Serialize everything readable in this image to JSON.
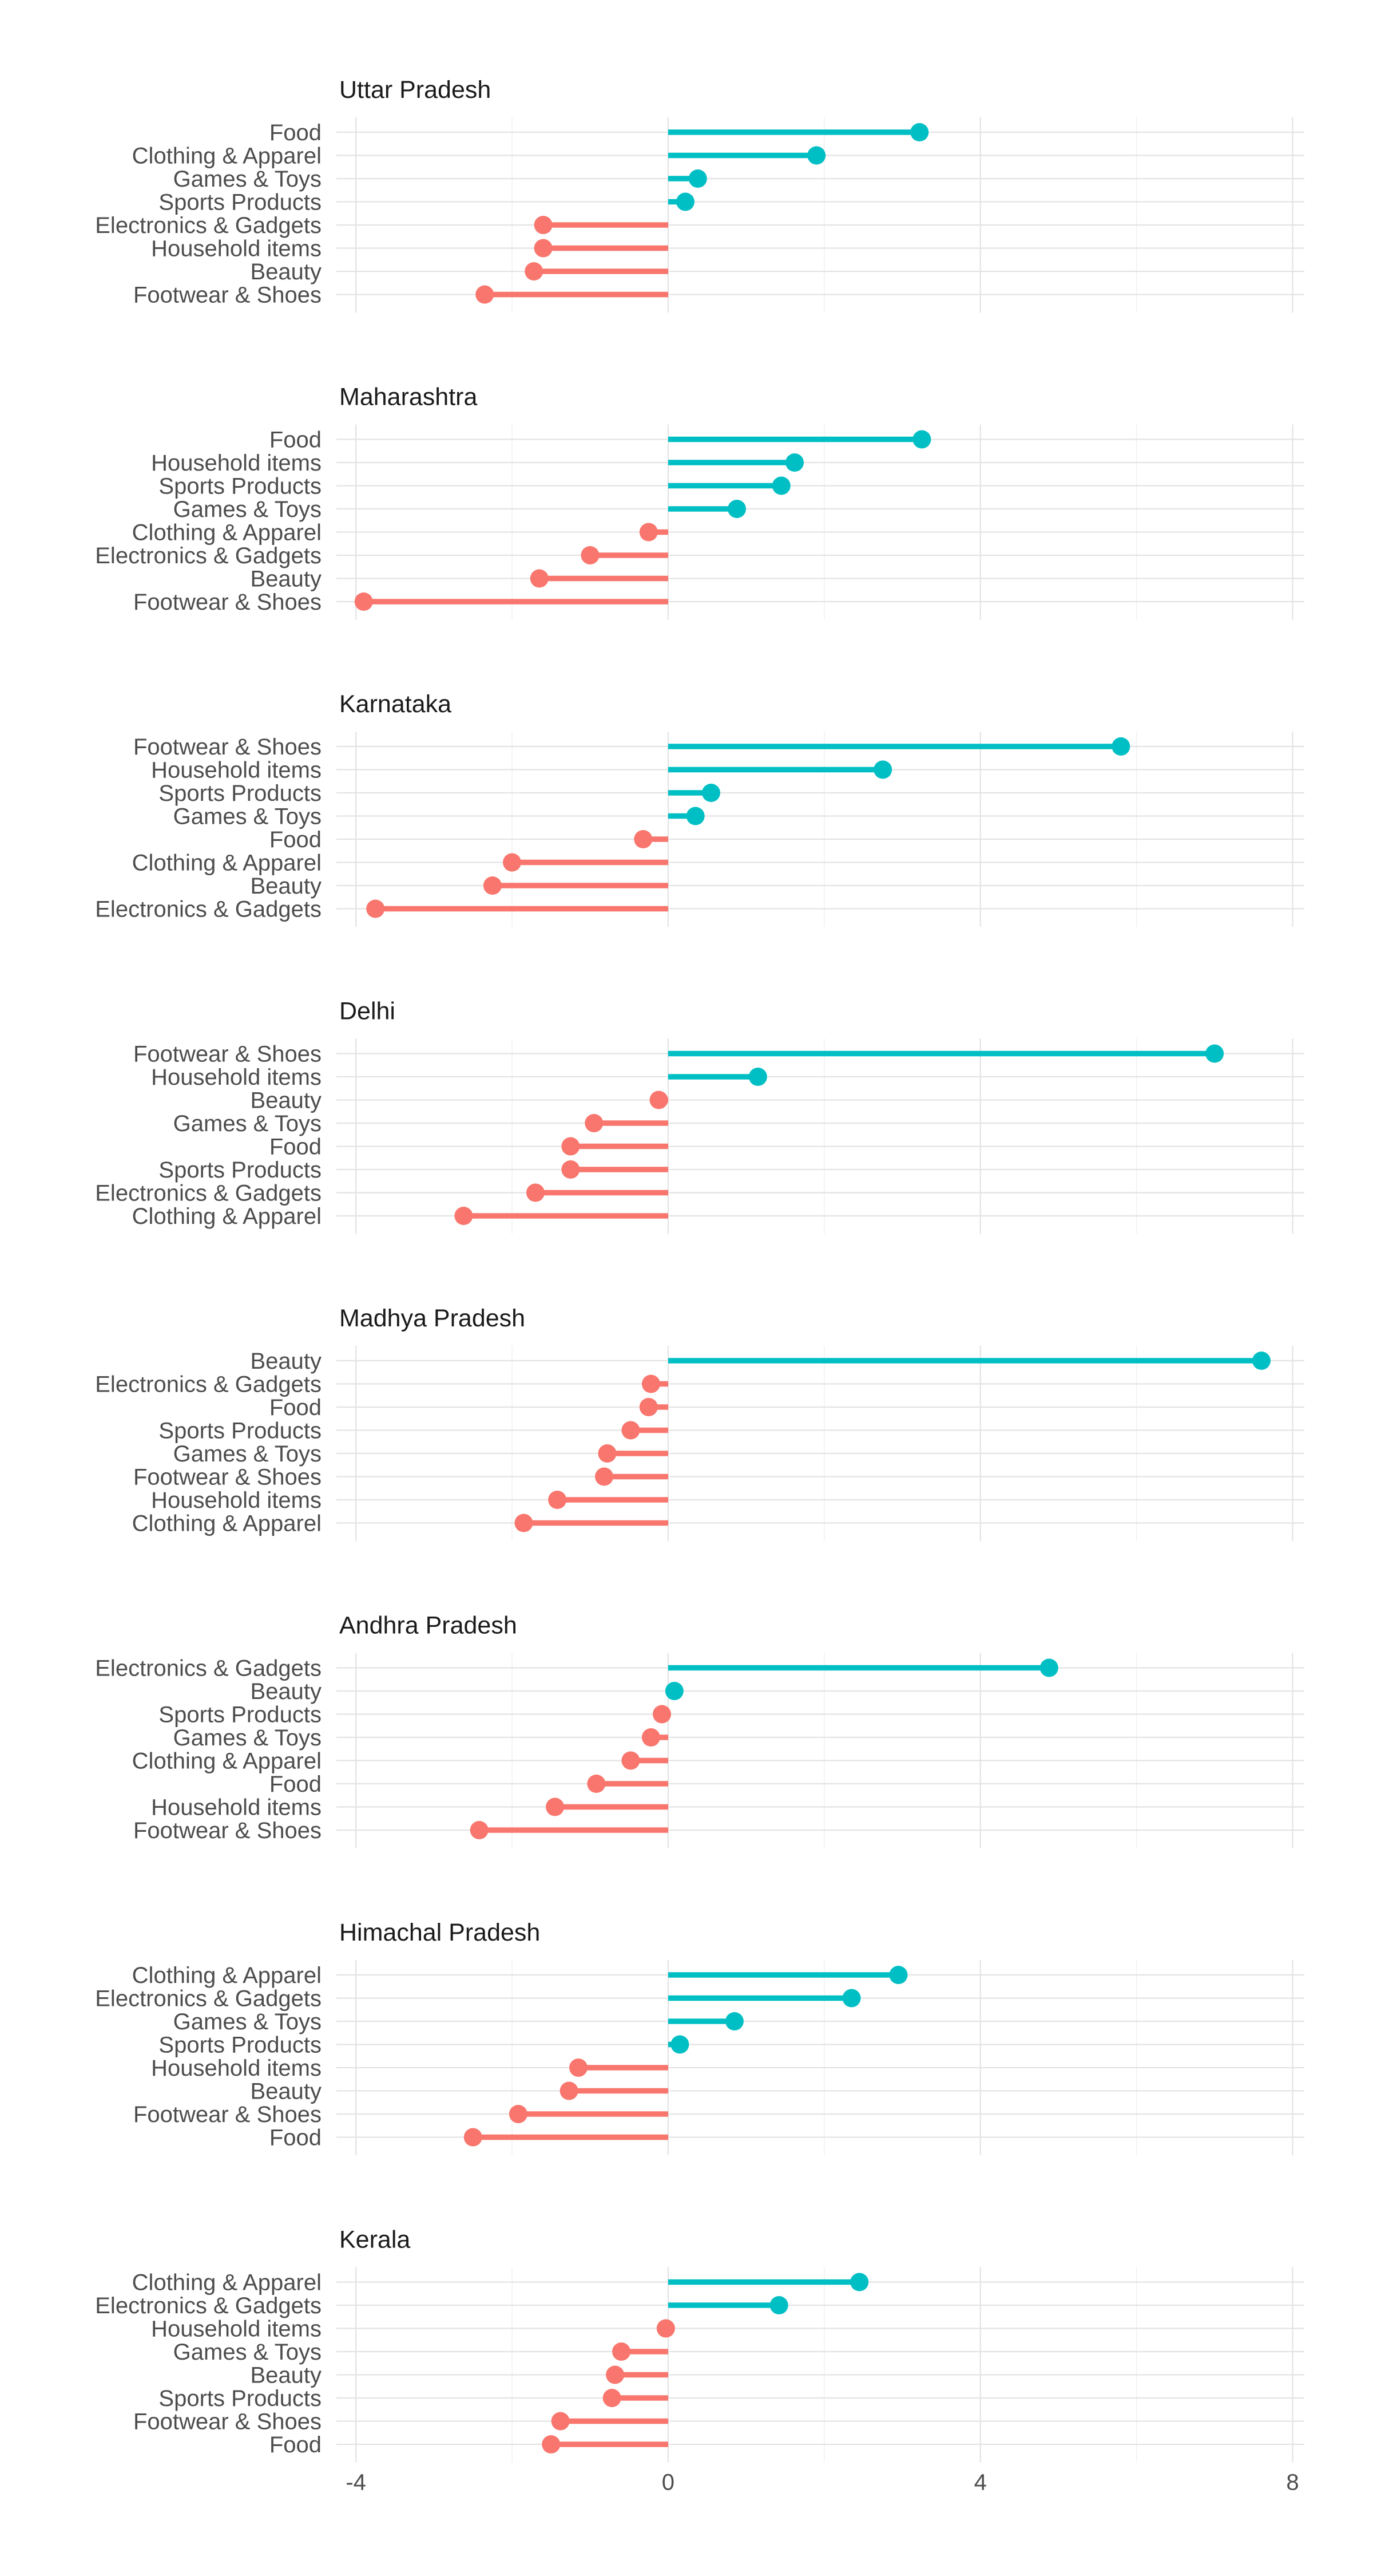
{
  "chart_data": {
    "type": "lollipop",
    "layout": "faceted-vertical",
    "xlim": [
      -4.25,
      8.15
    ],
    "x_ticks": [
      -4,
      0,
      4,
      8
    ],
    "x_tick_labels": [
      "-4",
      "0",
      "4",
      "8"
    ],
    "grid": true,
    "colors": {
      "positive": "#00BFC4",
      "negative": "#F8766D"
    },
    "panels": [
      {
        "title": "Uttar Pradesh",
        "points": [
          {
            "category": "Food",
            "value": 3.22
          },
          {
            "category": "Clothing & Apparel",
            "value": 1.9
          },
          {
            "category": "Games & Toys",
            "value": 0.38
          },
          {
            "category": "Sports Products",
            "value": 0.22
          },
          {
            "category": "Electronics & Gadgets",
            "value": -1.6
          },
          {
            "category": "Household items",
            "value": -1.6
          },
          {
            "category": "Beauty",
            "value": -1.72
          },
          {
            "category": "Footwear & Shoes",
            "value": -2.35
          }
        ]
      },
      {
        "title": "Maharashtra",
        "points": [
          {
            "category": "Food",
            "value": 3.25
          },
          {
            "category": "Household items",
            "value": 1.62
          },
          {
            "category": "Sports Products",
            "value": 1.45
          },
          {
            "category": "Games & Toys",
            "value": 0.88
          },
          {
            "category": "Clothing & Apparel",
            "value": -0.25
          },
          {
            "category": "Electronics & Gadgets",
            "value": -1.0
          },
          {
            "category": "Beauty",
            "value": -1.65
          },
          {
            "category": "Footwear & Shoes",
            "value": -3.9
          }
        ]
      },
      {
        "title": "Karnataka",
        "points": [
          {
            "category": "Footwear & Shoes",
            "value": 5.8
          },
          {
            "category": "Household items",
            "value": 2.75
          },
          {
            "category": "Sports Products",
            "value": 0.55
          },
          {
            "category": "Games & Toys",
            "value": 0.35
          },
          {
            "category": "Food",
            "value": -0.32
          },
          {
            "category": "Clothing & Apparel",
            "value": -2.0
          },
          {
            "category": "Beauty",
            "value": -2.25
          },
          {
            "category": "Electronics & Gadgets",
            "value": -3.75
          }
        ]
      },
      {
        "title": "Delhi",
        "points": [
          {
            "category": "Footwear & Shoes",
            "value": 7.0
          },
          {
            "category": "Household items",
            "value": 1.15
          },
          {
            "category": "Beauty",
            "value": -0.12
          },
          {
            "category": "Games & Toys",
            "value": -0.95
          },
          {
            "category": "Food",
            "value": -1.25
          },
          {
            "category": "Sports Products",
            "value": -1.25
          },
          {
            "category": "Electronics & Gadgets",
            "value": -1.7
          },
          {
            "category": "Clothing & Apparel",
            "value": -2.62
          }
        ]
      },
      {
        "title": "Madhya Pradesh",
        "points": [
          {
            "category": "Beauty",
            "value": 7.6
          },
          {
            "category": "Electronics & Gadgets",
            "value": -0.22
          },
          {
            "category": "Food",
            "value": -0.25
          },
          {
            "category": "Sports Products",
            "value": -0.48
          },
          {
            "category": "Games & Toys",
            "value": -0.78
          },
          {
            "category": "Footwear & Shoes",
            "value": -0.82
          },
          {
            "category": "Household items",
            "value": -1.42
          },
          {
            "category": "Clothing & Apparel",
            "value": -1.85
          }
        ]
      },
      {
        "title": "Andhra Pradesh",
        "points": [
          {
            "category": "Electronics & Gadgets",
            "value": 4.88
          },
          {
            "category": "Beauty",
            "value": 0.08
          },
          {
            "category": "Sports Products",
            "value": -0.08
          },
          {
            "category": "Games & Toys",
            "value": -0.22
          },
          {
            "category": "Clothing & Apparel",
            "value": -0.48
          },
          {
            "category": "Food",
            "value": -0.92
          },
          {
            "category": "Household items",
            "value": -1.45
          },
          {
            "category": "Footwear & Shoes",
            "value": -2.42
          }
        ]
      },
      {
        "title": "Himachal Pradesh",
        "points": [
          {
            "category": "Clothing & Apparel",
            "value": 2.95
          },
          {
            "category": "Electronics & Gadgets",
            "value": 2.35
          },
          {
            "category": "Games & Toys",
            "value": 0.85
          },
          {
            "category": "Sports Products",
            "value": 0.15
          },
          {
            "category": "Household items",
            "value": -1.15
          },
          {
            "category": "Beauty",
            "value": -1.27
          },
          {
            "category": "Footwear & Shoes",
            "value": -1.92
          },
          {
            "category": "Food",
            "value": -2.5
          }
        ]
      },
      {
        "title": "Kerala",
        "points": [
          {
            "category": "Clothing & Apparel",
            "value": 2.45
          },
          {
            "category": "Electronics & Gadgets",
            "value": 1.42
          },
          {
            "category": "Household items",
            "value": -0.03
          },
          {
            "category": "Games & Toys",
            "value": -0.6
          },
          {
            "category": "Beauty",
            "value": -0.68
          },
          {
            "category": "Sports Products",
            "value": -0.72
          },
          {
            "category": "Footwear & Shoes",
            "value": -1.38
          },
          {
            "category": "Food",
            "value": -1.5
          }
        ]
      }
    ]
  }
}
